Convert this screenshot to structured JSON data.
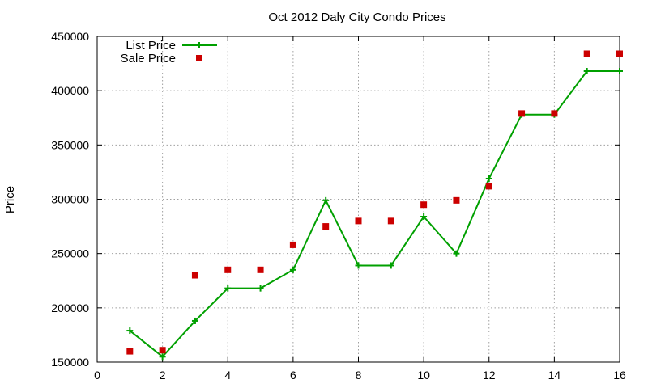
{
  "chart_data": {
    "type": "line",
    "title": "Oct 2012 Daly City Condo Prices",
    "xlabel": "",
    "ylabel": "Price",
    "xlim": [
      0,
      16
    ],
    "ylim": [
      150000,
      450000
    ],
    "xticks": [
      "0",
      "2",
      "4",
      "6",
      "8",
      "10",
      "12",
      "14",
      "16"
    ],
    "yticks": [
      "150000",
      "200000",
      "250000",
      "300000",
      "350000",
      "400000",
      "450000"
    ],
    "grid": true,
    "legend_position": "top-left",
    "x": [
      1,
      2,
      3,
      4,
      5,
      6,
      7,
      8,
      9,
      10,
      11,
      12,
      13,
      14,
      15,
      16
    ],
    "series": [
      {
        "name": "List Price",
        "style": "line-with-plus-markers",
        "color": "#00a000",
        "values": [
          179000,
          155000,
          188000,
          218000,
          218000,
          235000,
          299000,
          239000,
          239000,
          284000,
          250000,
          319000,
          378000,
          378000,
          418000,
          418000
        ]
      },
      {
        "name": "Sale Price",
        "style": "square-markers",
        "color": "#cc0000",
        "values": [
          160000,
          161000,
          230000,
          235000,
          235000,
          258000,
          275000,
          280000,
          280000,
          295000,
          299000,
          312000,
          379000,
          379000,
          434000,
          434000
        ]
      }
    ]
  }
}
